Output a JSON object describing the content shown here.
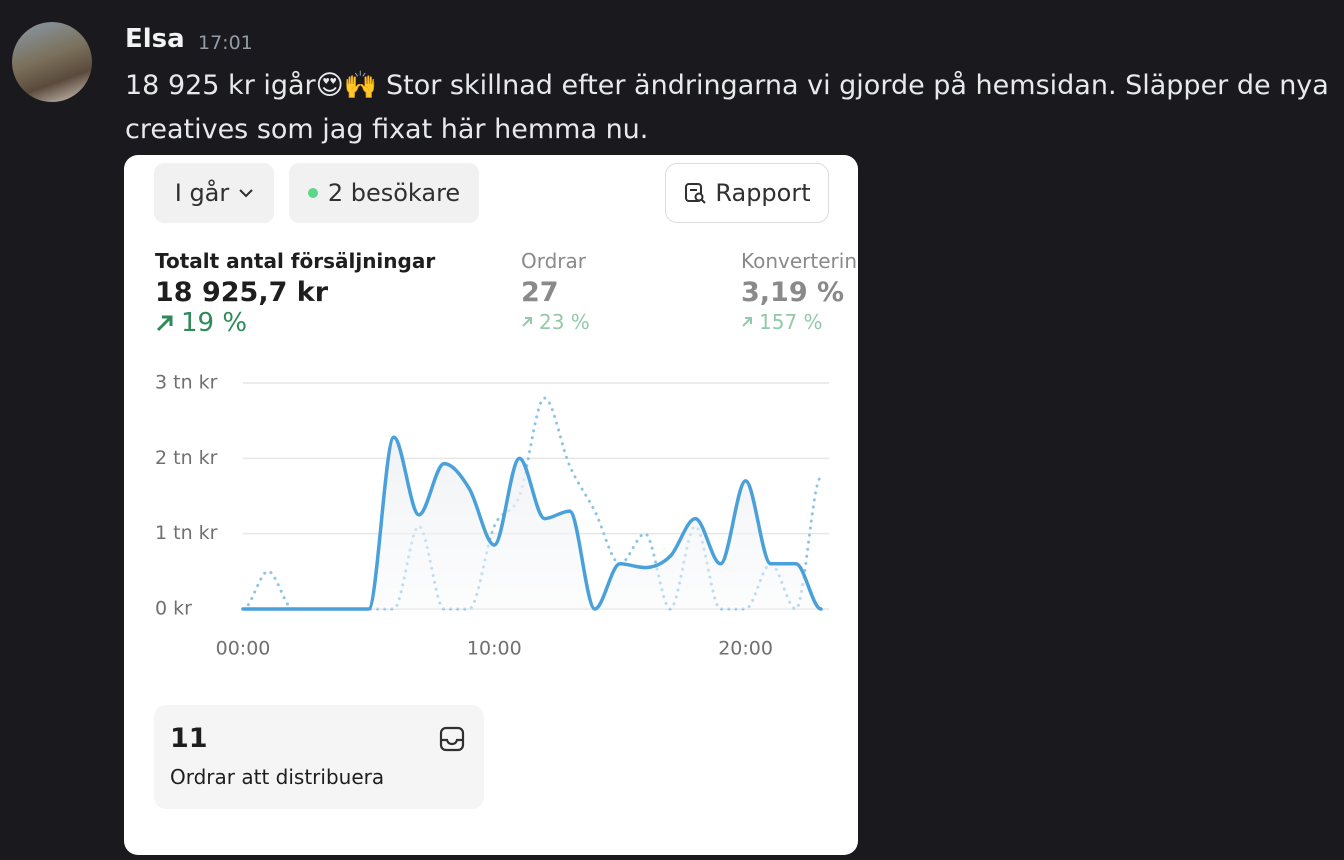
{
  "message": {
    "author": "Elsa",
    "time": "17:01",
    "text": "18 925 kr igår😍🙌 Stor skillnad efter ändringarna vi gjorde på hemsidan. Släpper de nya creatives som jag fixat här hemma nu."
  },
  "card": {
    "period": "I går",
    "visitors": "2 besökare",
    "report_button": "Rapport",
    "metrics": [
      {
        "label": "Totalt antal försäljningar",
        "value": "18 925,7 kr",
        "change": "19 %"
      },
      {
        "label": "Ordrar",
        "value": "27",
        "change": "23 %"
      },
      {
        "label": "Konvertering",
        "value": "3,19 %",
        "change": "157 %"
      }
    ],
    "orders_to_fulfill": {
      "count": "11",
      "label": "Ordrar att distribuera"
    }
  },
  "chart_data": {
    "type": "line",
    "x": [
      0,
      1,
      2,
      3,
      4,
      5,
      6,
      7,
      8,
      9,
      10,
      11,
      12,
      13,
      14,
      15,
      16,
      17,
      18,
      19,
      20,
      21,
      22,
      23
    ],
    "xlim": [
      0,
      23
    ],
    "xticks": [
      {
        "value": 0,
        "label": "00:00"
      },
      {
        "value": 10,
        "label": "10:00"
      },
      {
        "value": 20,
        "label": "20:00"
      }
    ],
    "ylim": [
      0,
      3000
    ],
    "yticks": [
      {
        "value": 0,
        "label": "0 kr"
      },
      {
        "value": 1000,
        "label": "1 tn kr"
      },
      {
        "value": 2000,
        "label": "2 tn kr"
      },
      {
        "value": 3000,
        "label": "3 tn kr"
      }
    ],
    "grid": true,
    "series": [
      {
        "color": "#4aa0da",
        "dashed": false,
        "values": [
          0,
          0,
          0,
          0,
          0,
          0,
          2280,
          1250,
          1930,
          1600,
          850,
          2000,
          1200,
          1300,
          0,
          600,
          550,
          700,
          1200,
          600,
          1700,
          600,
          600,
          0
        ]
      },
      {
        "color": "#8cc4e8",
        "dashed": true,
        "values": [
          0,
          500,
          0,
          0,
          0,
          0,
          0,
          1100,
          0,
          0,
          1100,
          1500,
          2800,
          1900,
          1300,
          600,
          1000,
          0,
          1100,
          0,
          0,
          600,
          0,
          1750
        ]
      }
    ]
  }
}
